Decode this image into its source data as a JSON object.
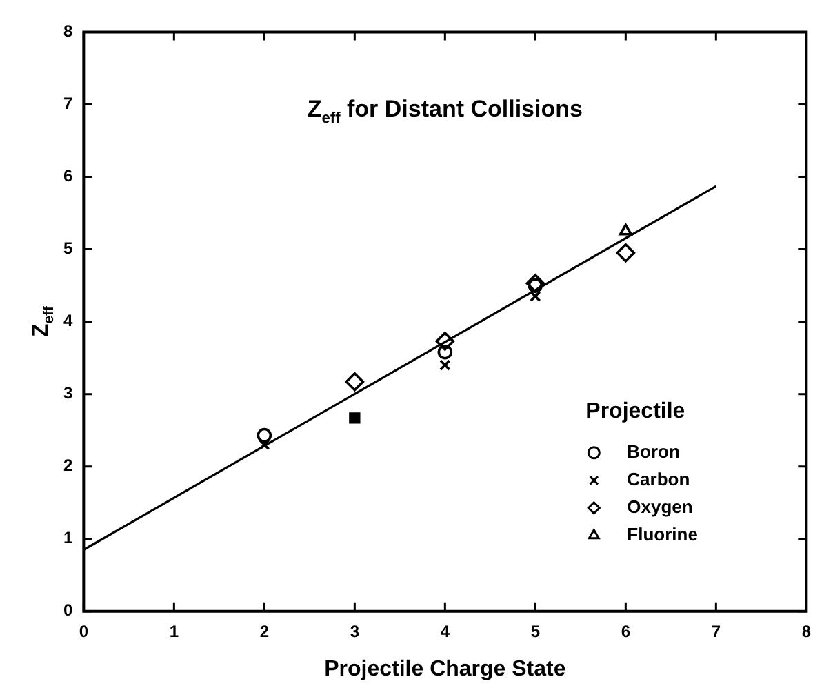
{
  "chart_data": {
    "type": "scatter",
    "title": "Z$_{eff}$ for Distant Collisions",
    "xlabel": "Projectile Charge State",
    "ylabel": "Z$_{eff}$",
    "legend_title": "Projectile",
    "xlim": [
      0,
      8
    ],
    "ylim": [
      0,
      8
    ],
    "xticks": [
      0,
      1,
      2,
      3,
      4,
      5,
      6,
      7,
      8
    ],
    "yticks": [
      0,
      1,
      2,
      3,
      4,
      5,
      6,
      7,
      8
    ],
    "grid": false,
    "legend": "bottom right",
    "series": [
      {
        "name": "Boron",
        "color": "#000000",
        "marker": "circle",
        "x": [
          2,
          4,
          5
        ],
        "values": [
          2.43,
          3.58,
          4.5
        ]
      },
      {
        "name": "Carbon",
        "color": "#000000",
        "marker": "cross",
        "x": [
          2,
          4,
          5
        ],
        "values": [
          2.3,
          3.4,
          4.35
        ]
      },
      {
        "name": "Oxygen",
        "color": "#000000",
        "marker": "diamond",
        "x": [
          3,
          4,
          5,
          6
        ],
        "values": [
          3.17,
          3.73,
          4.53,
          4.95
        ]
      },
      {
        "name": "Fluorine",
        "color": "#000000",
        "marker": "triangle",
        "x": [
          6
        ],
        "values": [
          5.25
        ]
      },
      {
        "color": "#000000",
        "marker": "square",
        "x": [
          3
        ],
        "values": [
          2.67
        ]
      },
      {
        "type": "line",
        "color": "#000000",
        "marker": "none",
        "x": [
          0,
          7
        ],
        "values": [
          0.85,
          5.87
        ]
      }
    ]
  }
}
